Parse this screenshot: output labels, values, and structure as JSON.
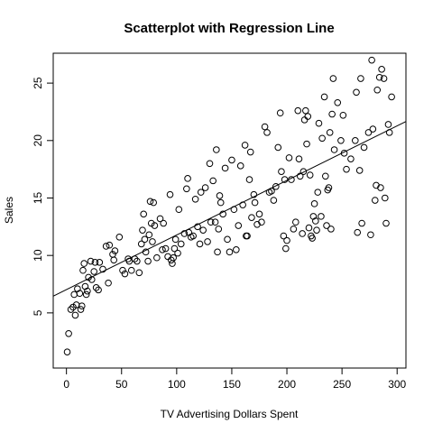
{
  "chart_data": {
    "type": "scatter",
    "title": "Scatterplot with Regression Line",
    "xlabel": "TV Advertising Dollars Spent",
    "ylabel": "Sales",
    "xlim": [
      -12,
      308
    ],
    "ylim": [
      0.2,
      27.6
    ],
    "xticks": [
      0,
      50,
      100,
      150,
      200,
      250,
      300
    ],
    "yticks": [
      5,
      10,
      15,
      20,
      25
    ],
    "grid": false,
    "legend": "none",
    "regression": {
      "intercept": 7.03,
      "slope": 0.0475
    },
    "points": [
      [
        0.7,
        1.6
      ],
      [
        2,
        3.2
      ],
      [
        4,
        5.3
      ],
      [
        6,
        5.5
      ],
      [
        7,
        6.6
      ],
      [
        8,
        4.8
      ],
      [
        9,
        5.7
      ],
      [
        10,
        7.1
      ],
      [
        12,
        6.7
      ],
      [
        13,
        5.3
      ],
      [
        14,
        5.6
      ],
      [
        15,
        8.7
      ],
      [
        16,
        9.3
      ],
      [
        17,
        7.3
      ],
      [
        18,
        6.6
      ],
      [
        19,
        6.9
      ],
      [
        20,
        8.1
      ],
      [
        22,
        9.5
      ],
      [
        23,
        7.9
      ],
      [
        25,
        8.6
      ],
      [
        26,
        9.4
      ],
      [
        27,
        7.2
      ],
      [
        29,
        7.0
      ],
      [
        30,
        9.4
      ],
      [
        33,
        8.8
      ],
      [
        36,
        10.8
      ],
      [
        38,
        7.6
      ],
      [
        39,
        10.9
      ],
      [
        42,
        10.1
      ],
      [
        43,
        9.6
      ],
      [
        44,
        10.4
      ],
      [
        48,
        11.6
      ],
      [
        51,
        8.7
      ],
      [
        53,
        8.4
      ],
      [
        56,
        9.7
      ],
      [
        57,
        9.5
      ],
      [
        59,
        8.7
      ],
      [
        62,
        9.7
      ],
      [
        64,
        9.5
      ],
      [
        66,
        8.5
      ],
      [
        68,
        11.0
      ],
      [
        69,
        12.2
      ],
      [
        70,
        13.6
      ],
      [
        71,
        11.4
      ],
      [
        72,
        10.3
      ],
      [
        74,
        9.5
      ],
      [
        75,
        11.8
      ],
      [
        76,
        14.7
      ],
      [
        77,
        12.8
      ],
      [
        78,
        11.2
      ],
      [
        79,
        14.6
      ],
      [
        80,
        12.6
      ],
      [
        82,
        9.8
      ],
      [
        85,
        13.2
      ],
      [
        87,
        10.5
      ],
      [
        88,
        12.8
      ],
      [
        90,
        10.6
      ],
      [
        92,
        9.9
      ],
      [
        94,
        15.3
      ],
      [
        95,
        9.6
      ],
      [
        96,
        9.3
      ],
      [
        97,
        9.8
      ],
      [
        98,
        10.6
      ],
      [
        99,
        11.4
      ],
      [
        101,
        10.2
      ],
      [
        102,
        14.0
      ],
      [
        104,
        11.0
      ],
      [
        107,
        11.9
      ],
      [
        109,
        15.8
      ],
      [
        110,
        16.7
      ],
      [
        111,
        12.0
      ],
      [
        113,
        11.6
      ],
      [
        115,
        11.7
      ],
      [
        117,
        14.9
      ],
      [
        119,
        12.5
      ],
      [
        121,
        11.0
      ],
      [
        122,
        15.5
      ],
      [
        124,
        12.2
      ],
      [
        126,
        15.9
      ],
      [
        128,
        11.2
      ],
      [
        130,
        18.0
      ],
      [
        131,
        12.9
      ],
      [
        133,
        16.5
      ],
      [
        135,
        12.9
      ],
      [
        136,
        19.2
      ],
      [
        137,
        10.3
      ],
      [
        138,
        12.3
      ],
      [
        139,
        15.2
      ],
      [
        140,
        14.6
      ],
      [
        142,
        13.6
      ],
      [
        144,
        17.6
      ],
      [
        146,
        11.4
      ],
      [
        148,
        10.3
      ],
      [
        150,
        18.3
      ],
      [
        152,
        14.0
      ],
      [
        154,
        10.5
      ],
      [
        156,
        12.6
      ],
      [
        158,
        17.8
      ],
      [
        160,
        14.4
      ],
      [
        162,
        19.6
      ],
      [
        163,
        11.7
      ],
      [
        164,
        11.7
      ],
      [
        166,
        16.6
      ],
      [
        167,
        19.0
      ],
      [
        168,
        13.3
      ],
      [
        170,
        15.3
      ],
      [
        171,
        14.6
      ],
      [
        173,
        12.7
      ],
      [
        175,
        13.6
      ],
      [
        177,
        12.9
      ],
      [
        180,
        21.2
      ],
      [
        182,
        20.7
      ],
      [
        184,
        15.5
      ],
      [
        186,
        15.6
      ],
      [
        188,
        14.8
      ],
      [
        190,
        16.0
      ],
      [
        192,
        19.4
      ],
      [
        194,
        22.4
      ],
      [
        195,
        17.3
      ],
      [
        197,
        11.7
      ],
      [
        198,
        16.6
      ],
      [
        199,
        10.6
      ],
      [
        200,
        11.3
      ],
      [
        202,
        18.5
      ],
      [
        204,
        16.6
      ],
      [
        206,
        12.3
      ],
      [
        208,
        12.9
      ],
      [
        210,
        22.6
      ],
      [
        211,
        18.4
      ],
      [
        212,
        16.9
      ],
      [
        214,
        11.9
      ],
      [
        215,
        17.3
      ],
      [
        216,
        21.8
      ],
      [
        217,
        22.6
      ],
      [
        218,
        19.7
      ],
      [
        219,
        22.1
      ],
      [
        220,
        12.4
      ],
      [
        221,
        17.0
      ],
      [
        222,
        11.7
      ],
      [
        223,
        11.5
      ],
      [
        224,
        13.4
      ],
      [
        225,
        14.5
      ],
      [
        226,
        13.0
      ],
      [
        227,
        12.2
      ],
      [
        228,
        15.5
      ],
      [
        229,
        21.5
      ],
      [
        231,
        13.4
      ],
      [
        232,
        20.2
      ],
      [
        234,
        23.8
      ],
      [
        235,
        16.9
      ],
      [
        236,
        12.6
      ],
      [
        237,
        15.7
      ],
      [
        238,
        15.9
      ],
      [
        239,
        20.7
      ],
      [
        240,
        12.3
      ],
      [
        241,
        22.3
      ],
      [
        242,
        25.4
      ],
      [
        243,
        19.2
      ],
      [
        246,
        23.3
      ],
      [
        249,
        20.0
      ],
      [
        251,
        22.2
      ],
      [
        252,
        18.9
      ],
      [
        254,
        17.5
      ],
      [
        258,
        18.4
      ],
      [
        262,
        20.0
      ],
      [
        263,
        24.2
      ],
      [
        264,
        12.0
      ],
      [
        266,
        17.4
      ],
      [
        267,
        25.4
      ],
      [
        268,
        12.8
      ],
      [
        270,
        19.4
      ],
      [
        274,
        20.7
      ],
      [
        276,
        11.8
      ],
      [
        277,
        27.0
      ],
      [
        278,
        21.0
      ],
      [
        280,
        14.8
      ],
      [
        281,
        16.1
      ],
      [
        282,
        24.4
      ],
      [
        284,
        25.5
      ],
      [
        285,
        15.9
      ],
      [
        286,
        26.2
      ],
      [
        288,
        25.4
      ],
      [
        289,
        15.0
      ],
      [
        290,
        12.8
      ],
      [
        292,
        21.4
      ],
      [
        293,
        20.7
      ],
      [
        295,
        23.8
      ]
    ]
  }
}
